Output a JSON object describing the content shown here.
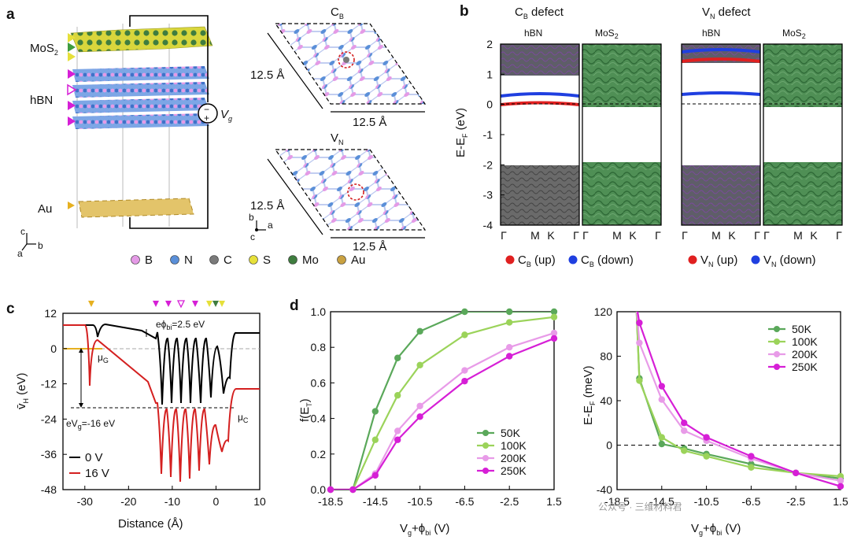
{
  "panel_labels": {
    "a": "a",
    "b": "b",
    "c": "c",
    "d": "d"
  },
  "panel_a": {
    "layer_labels": {
      "mos2": "MoS",
      "mos2_sub": "2",
      "hbn": "hBN",
      "au": "Au"
    },
    "voltage_symbol": "V",
    "voltage_sub": "g",
    "plus": "+",
    "minus": "−",
    "axes": {
      "c": "c",
      "a": "a",
      "b": "b"
    },
    "cb_title": "C",
    "cb_title_sub": "B",
    "vn_title": "V",
    "vn_title_sub": "N",
    "dim_left": "12.5 Å",
    "dim_bottom": "12.5 Å",
    "legend": [
      {
        "symbol": "B",
        "color": "#e49ae6"
      },
      {
        "symbol": "N",
        "color": "#5a8fd8"
      },
      {
        "symbol": "C",
        "color": "#7a7a7a"
      },
      {
        "symbol": "S",
        "color": "#e6e03a"
      },
      {
        "symbol": "Mo",
        "color": "#3f7d3f"
      },
      {
        "symbol": "Au",
        "color": "#c9a141"
      }
    ]
  },
  "panel_b": {
    "title_cb": "C",
    "title_cb_sub": "B",
    "title_cb_rest": " defect",
    "title_vn": "V",
    "title_vn_sub": "N",
    "title_vn_rest": " defect",
    "sub_hbn": "hBN",
    "sub_mos2": "MoS",
    "sub_mos2_sub": "2",
    "ylabel": "E-E",
    "ylabel_sub": "F",
    "ylabel_unit": " (eV)",
    "yticks": [
      "2",
      "1",
      "0",
      "-1",
      "-2",
      "-3",
      "-4"
    ],
    "kpoints": [
      "Γ",
      "M",
      "K",
      "Γ"
    ],
    "legend_cb": [
      {
        "text": "C",
        "sub": "B",
        "rest": " (up)",
        "color": "#e02020"
      },
      {
        "text": "C",
        "sub": "B",
        "rest": " (down)",
        "color": "#1f3fe0"
      }
    ],
    "legend_vn": [
      {
        "text": "V",
        "sub": "N",
        "rest": " (up)",
        "color": "#e02020"
      },
      {
        "text": "V",
        "sub": "N",
        "rest": " (down)",
        "color": "#1f3fe0"
      }
    ]
  },
  "panel_c": {
    "ylabel": "v̄",
    "ylabel_sub": "H",
    "ylabel_unit": " (eV)",
    "xlabel": "Distance (Å)",
    "yticks": [
      "12",
      "0",
      "-12",
      "-24",
      "-36",
      "-48"
    ],
    "xticks": [
      "-30",
      "-20",
      "-10",
      "0",
      "10"
    ],
    "phi_label": "eϕ",
    "phi_sub": "bi",
    "phi_value": "=2.5 eV",
    "mu_g": "μ",
    "mu_g_sub": "G",
    "mu_c": "μ",
    "mu_c_sub": "C",
    "evg_label": "eV",
    "evg_sub": "g",
    "evg_value": "=-16 eV",
    "legend": [
      {
        "label": "0 V",
        "color": "#000000"
      },
      {
        "label": "16 V",
        "color": "#d42020"
      }
    ]
  },
  "chart_data": [
    {
      "type": "line",
      "title": "",
      "xlabel": "Vg+ϕbi (V)",
      "ylabel": "f(ET)",
      "xlim": [
        -18.5,
        1.5
      ],
      "ylim": [
        0.0,
        1.0
      ],
      "xticks": [
        "-18.5",
        "-14.5",
        "-10.5",
        "-6.5",
        "-2.5",
        "1.5"
      ],
      "yticks": [
        "0.0",
        "0.2",
        "0.4",
        "0.6",
        "0.8",
        "1.0"
      ],
      "x": [
        -18.5,
        -16.5,
        -14.5,
        -12.5,
        -10.5,
        -6.5,
        -2.5,
        1.5
      ],
      "series": [
        {
          "name": "50K",
          "color": "#5aa85a",
          "values": [
            0.0,
            0.0,
            0.44,
            0.74,
            0.89,
            1.0,
            1.0,
            1.0
          ]
        },
        {
          "name": "100K",
          "color": "#9bd35a",
          "values": [
            0.0,
            0.0,
            0.28,
            0.53,
            0.7,
            0.87,
            0.94,
            0.97
          ]
        },
        {
          "name": "200K",
          "color": "#e89be8",
          "values": [
            0.0,
            0.0,
            0.09,
            0.33,
            0.47,
            0.67,
            0.8,
            0.88
          ]
        },
        {
          "name": "250K",
          "color": "#d61fd6",
          "values": [
            0.0,
            0.0,
            0.08,
            0.28,
            0.41,
            0.61,
            0.75,
            0.85
          ]
        }
      ],
      "legend": "bottom-right"
    },
    {
      "type": "line",
      "title": "",
      "xlabel": "Vg+ϕbi (V)",
      "ylabel": "E-EF (meV)",
      "xlim": [
        -18.5,
        1.5
      ],
      "ylim": [
        -40,
        120
      ],
      "xticks": [
        "-18.5",
        "-14.5",
        "-10.5",
        "-6.5",
        "-2.5",
        "1.5"
      ],
      "yticks": [
        "120",
        "80",
        "40",
        "0",
        "-40"
      ],
      "x": [
        -16.5,
        -14.5,
        -12.5,
        -10.5,
        -6.5,
        -2.5,
        1.5
      ],
      "series": [
        {
          "name": "50K",
          "color": "#5aa85a",
          "values": [
            60,
            1,
            -3,
            -8,
            -17,
            -25,
            -30
          ]
        },
        {
          "name": "100K",
          "color": "#9bd35a",
          "values": [
            58,
            7,
            -5,
            -10,
            -20,
            -25,
            -28
          ]
        },
        {
          "name": "200K",
          "color": "#e89be8",
          "values": [
            92,
            41,
            13,
            4,
            -12,
            -25,
            -32
          ]
        },
        {
          "name": "250K",
          "color": "#d61fd6",
          "values": [
            110,
            53,
            20,
            7,
            -10,
            -25,
            -37
          ]
        }
      ],
      "legend": "top-right"
    }
  ],
  "watermark": "公众号 · 三维材料君"
}
